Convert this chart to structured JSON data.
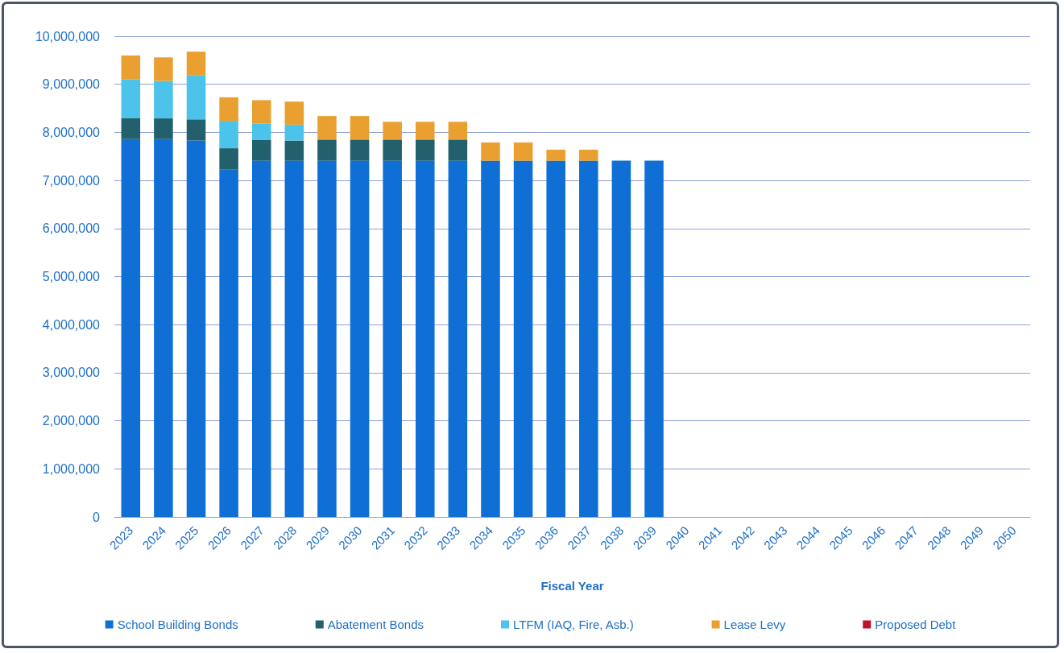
{
  "chart_data": {
    "type": "bar",
    "stacked": true,
    "xlabel": "Fiscal Year",
    "categories": [
      "2023",
      "2024",
      "2025",
      "2026",
      "2027",
      "2028",
      "2029",
      "2030",
      "2031",
      "2032",
      "2033",
      "2034",
      "2035",
      "2036",
      "2037",
      "2038",
      "2039",
      "2040",
      "2041",
      "2042",
      "2043",
      "2044",
      "2045",
      "2046",
      "2047",
      "2048",
      "2049",
      "2050"
    ],
    "series": [
      {
        "name": "School Building Bonds",
        "color": "#0f6fd4",
        "values": [
          7860000,
          7860000,
          7830000,
          7230000,
          7410000,
          7410000,
          7410000,
          7410000,
          7410000,
          7410000,
          7410000,
          7410000,
          7410000,
          7410000,
          7410000,
          7410000,
          7410000,
          0,
          0,
          0,
          0,
          0,
          0,
          0,
          0,
          0,
          0,
          0
        ]
      },
      {
        "name": "Abatement Bonds",
        "color": "#22606e",
        "values": [
          440000,
          430000,
          440000,
          440000,
          430000,
          420000,
          440000,
          440000,
          440000,
          440000,
          440000,
          0,
          0,
          0,
          0,
          0,
          0,
          0,
          0,
          0,
          0,
          0,
          0,
          0,
          0,
          0,
          0,
          0
        ]
      },
      {
        "name": "LTFM (IAQ, Fire, Asb.)",
        "color": "#4cc3ea",
        "values": [
          800000,
          780000,
          920000,
          570000,
          340000,
          330000,
          0,
          0,
          0,
          0,
          0,
          0,
          0,
          0,
          0,
          0,
          0,
          0,
          0,
          0,
          0,
          0,
          0,
          0,
          0,
          0,
          0,
          0
        ]
      },
      {
        "name": "Lease Levy",
        "color": "#e9a030",
        "values": [
          500000,
          490000,
          490000,
          490000,
          490000,
          480000,
          490000,
          490000,
          370000,
          370000,
          370000,
          380000,
          380000,
          230000,
          230000,
          0,
          0,
          0,
          0,
          0,
          0,
          0,
          0,
          0,
          0,
          0,
          0,
          0
        ]
      },
      {
        "name": "Proposed Debt",
        "color": "#c0122c",
        "values": [
          0,
          0,
          0,
          0,
          0,
          0,
          0,
          0,
          0,
          0,
          0,
          0,
          0,
          0,
          0,
          0,
          0,
          0,
          0,
          0,
          0,
          0,
          0,
          0,
          0,
          0,
          0,
          0
        ]
      }
    ],
    "ylim": [
      0,
      10000000
    ],
    "yticks": [
      0,
      {
        "value": 1000000,
        "label": "1,000,000"
      },
      {
        "value": 2000000,
        "label": "2,000,000"
      },
      {
        "value": 3000000,
        "label": "3,000,000"
      },
      {
        "value": 4000000,
        "label": "4,000,000"
      },
      {
        "value": 5000000,
        "label": "5,000,000"
      },
      {
        "value": 6000000,
        "label": "6,000,000"
      },
      {
        "value": 7000000,
        "label": "7,000,000"
      },
      {
        "value": 8000000,
        "label": "8,000,000"
      },
      {
        "value": 9000000,
        "label": "9,000,000"
      },
      {
        "value": 10000000,
        "label": "10,000,000"
      }
    ],
    "grid": "y",
    "legend": "bottom"
  }
}
